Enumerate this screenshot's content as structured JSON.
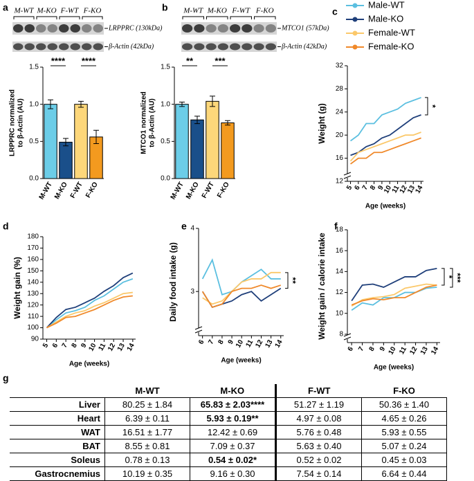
{
  "chart_data": [
    {
      "type": "bar",
      "panel": "a",
      "blot": {
        "lanes": [
          "M-WT",
          "M-KO",
          "F-WT",
          "F-KO"
        ],
        "bands": [
          "LRPPRC (130kDa)",
          "β-Actin (42kDa)"
        ]
      },
      "ylabel": [
        "LRPPRC normalized",
        "to β-Actin (AU)"
      ],
      "categories": [
        "M-WT",
        "M-KO",
        "F-WT",
        "F-KO"
      ],
      "values": [
        1.0,
        0.49,
        1.0,
        0.56
      ],
      "errors": [
        0.06,
        0.05,
        0.04,
        0.09
      ],
      "colors": [
        "#6ccde8",
        "#1a4f8a",
        "#fdd77a",
        "#f39a1f"
      ],
      "ylim": [
        0,
        1.5
      ],
      "yticks": [
        {
          "value": 0,
          "label": "0.0"
        },
        0.5,
        {
          "value": 1,
          "label": "1.0"
        },
        1.5
      ],
      "annotations": [
        "****",
        "****"
      ]
    },
    {
      "type": "bar",
      "panel": "b",
      "blot": {
        "lanes": [
          "M-WT",
          "M-KO",
          "F-WT",
          "F-KO"
        ],
        "bands": [
          "MTCO1 (57kDa)",
          "β-Actin (42kDa)"
        ]
      },
      "ylabel": [
        "MTCO1 normalized",
        "to β-Actin (AU)"
      ],
      "categories": [
        "M-WT",
        "M-KO",
        "F-WT",
        "F-KO"
      ],
      "values": [
        1.0,
        0.79,
        1.04,
        0.75
      ],
      "errors": [
        0.03,
        0.05,
        0.07,
        0.03
      ],
      "colors": [
        "#6ccde8",
        "#1a4f8a",
        "#fdd77a",
        "#f39a1f"
      ],
      "ylim": [
        0,
        1.5
      ],
      "yticks": [
        {
          "value": 0,
          "label": "0.0"
        },
        0.5,
        {
          "value": 1,
          "label": "1.0"
        },
        1.5
      ],
      "annotations": [
        "**",
        "***"
      ]
    },
    {
      "type": "line",
      "panel": "c",
      "legend": "above",
      "ylabel": "Weight (g)",
      "xlabel": "Age (weeks)",
      "x": [
        5,
        6,
        7,
        8,
        9,
        10,
        11,
        12,
        13,
        14
      ],
      "xlim": [
        4.6,
        14.3
      ],
      "series": [
        {
          "name": "Male-WT",
          "color": "#5bbfe0",
          "values": [
            19,
            20,
            22,
            22,
            23.5,
            24,
            24.5,
            25.5,
            26,
            26.5
          ]
        },
        {
          "name": "Male-KO",
          "color": "#1f3f7a",
          "values": [
            16.5,
            17,
            18,
            18.5,
            19.5,
            20,
            21,
            22,
            23,
            23.5
          ]
        },
        {
          "name": "Female-WT",
          "color": "#fbc86a",
          "values": [
            15.5,
            17,
            17.5,
            18,
            18.5,
            19,
            19.5,
            20,
            20,
            20.5
          ]
        },
        {
          "name": "Female-KO",
          "color": "#f0892a",
          "values": [
            15,
            16,
            16,
            17,
            17,
            17.5,
            18,
            18.5,
            19,
            19.5
          ]
        }
      ],
      "ylim": [
        12,
        32
      ],
      "yticks": [
        12,
        16,
        20,
        24,
        28,
        32
      ],
      "axis_break": true,
      "annotations": [
        "*"
      ]
    },
    {
      "type": "line",
      "panel": "d",
      "ylabel": "Weight gain (%)",
      "xlabel": "Age (weeks)",
      "x": [
        5,
        6,
        7,
        8,
        9,
        10,
        11,
        12,
        13,
        14
      ],
      "xlim": [
        4.6,
        14.3
      ],
      "series": [
        {
          "name": "Male-WT",
          "color": "#5bbfe0",
          "values": [
            100,
            107,
            113,
            115,
            118,
            124,
            128,
            134,
            140,
            143
          ]
        },
        {
          "name": "Male-KO",
          "color": "#1f3f7a",
          "values": [
            100,
            109,
            116,
            118,
            122,
            126,
            132,
            137,
            144,
            148
          ]
        },
        {
          "name": "Female-WT",
          "color": "#fbc86a",
          "values": [
            100,
            105,
            110,
            113,
            115,
            119,
            122,
            126,
            130,
            131
          ]
        },
        {
          "name": "Female-KO",
          "color": "#f0892a",
          "values": [
            100,
            104,
            109,
            110,
            113,
            116,
            120,
            124,
            127,
            128
          ]
        }
      ],
      "ylim": [
        90,
        180
      ],
      "yticks": [
        90,
        100,
        110,
        120,
        130,
        140,
        150,
        160,
        170,
        180
      ]
    },
    {
      "type": "line",
      "panel": "e",
      "ylabel": "Daily food intake (g)",
      "xlabel": "Age (weeks)",
      "x": [
        6,
        7,
        8,
        9,
        10,
        11,
        12,
        13,
        14
      ],
      "xlim": [
        5.6,
        14.3
      ],
      "series": [
        {
          "name": "Male-WT",
          "color": "#5bbfe0",
          "values": [
            3.2,
            3.5,
            2.95,
            3.0,
            3.15,
            3.25,
            3.35,
            3.2,
            3.2
          ]
        },
        {
          "name": "Male-KO",
          "color": "#1f3f7a",
          "values": [
            3.0,
            2.75,
            2.8,
            2.85,
            2.95,
            3.0,
            2.85,
            2.95,
            3.05
          ]
        },
        {
          "name": "Female-WT",
          "color": "#fbc86a",
          "values": [
            2.9,
            2.8,
            2.85,
            3.0,
            3.15,
            3.2,
            3.2,
            3.3,
            3.3
          ]
        },
        {
          "name": "Female-KO",
          "color": "#f0892a",
          "values": [
            3.0,
            2.75,
            2.8,
            3.0,
            3.05,
            3.05,
            3.1,
            3.05,
            3.1
          ]
        }
      ],
      "ylim": [
        2.3,
        4
      ],
      "yticks": [
        3,
        4
      ],
      "axis_break": true,
      "annotations": [
        "**"
      ]
    },
    {
      "type": "line",
      "panel": "f",
      "ylabel": "Weight gain / calorie intake",
      "xlabel": "Age (weeks)",
      "x": [
        6,
        7,
        8,
        9,
        10,
        11,
        12,
        13,
        14
      ],
      "xlim": [
        5.6,
        14.3
      ],
      "series": [
        {
          "name": "Male-WT",
          "color": "#5bbfe0",
          "values": [
            10.3,
            11.0,
            10.8,
            11.5,
            11.5,
            12.0,
            12.0,
            12.4,
            12.5
          ]
        },
        {
          "name": "Male-KO",
          "color": "#1f3f7a",
          "values": [
            11.2,
            12.7,
            12.8,
            12.5,
            13.0,
            13.5,
            13.5,
            14.1,
            14.3
          ]
        },
        {
          "name": "Female-WT",
          "color": "#fbc86a",
          "values": [
            10.7,
            11.3,
            11.5,
            11.6,
            11.8,
            12.4,
            12.6,
            12.8,
            12.7
          ]
        },
        {
          "name": "Female-KO",
          "color": "#f0892a",
          "values": [
            10.8,
            11.2,
            11.4,
            11.3,
            11.5,
            11.5,
            12.0,
            12.5,
            12.7
          ]
        }
      ],
      "ylim": [
        7.2,
        18
      ],
      "yticks": [
        8,
        10,
        12,
        14,
        16,
        18
      ],
      "axis_break": true,
      "annotations": [
        "*",
        "***"
      ]
    }
  ],
  "table": {
    "panel": "g",
    "columns": [
      "M-WT",
      "M-KO",
      "F-WT",
      "F-KO"
    ],
    "rows": [
      {
        "label": "Liver",
        "values": [
          "80.25 ± 1.84",
          "65.83 ± 2.03****",
          "51.27 ± 1.19",
          "50.36 ± 1.40"
        ]
      },
      {
        "label": "Heart",
        "values": [
          "6.39 ± 0.11",
          "5.93 ± 0.19**",
          "4.97 ± 0.08",
          "4.65 ± 0.26"
        ]
      },
      {
        "label": "WAT",
        "values": [
          "16.51 ± 1.77",
          "12.42 ± 0.69",
          "5.76 ± 0.48",
          "5.93 ± 0.55"
        ]
      },
      {
        "label": "BAT",
        "values": [
          "8.55 ± 0.81",
          "7.09 ± 0.37",
          "5.63 ± 0.40",
          "5.07 ± 0.24"
        ]
      },
      {
        "label": "Soleus",
        "values": [
          "0.78 ± 0.13",
          "0.54 ± 0.02*",
          "0.52 ± 0.02",
          "0.45 ± 0.03"
        ]
      },
      {
        "label": "Gastrocnemius",
        "values": [
          "10.19 ± 0.35",
          "9.16 ± 0.30",
          "7.54 ± 0.14",
          "6.64 ± 0.44"
        ]
      }
    ]
  }
}
